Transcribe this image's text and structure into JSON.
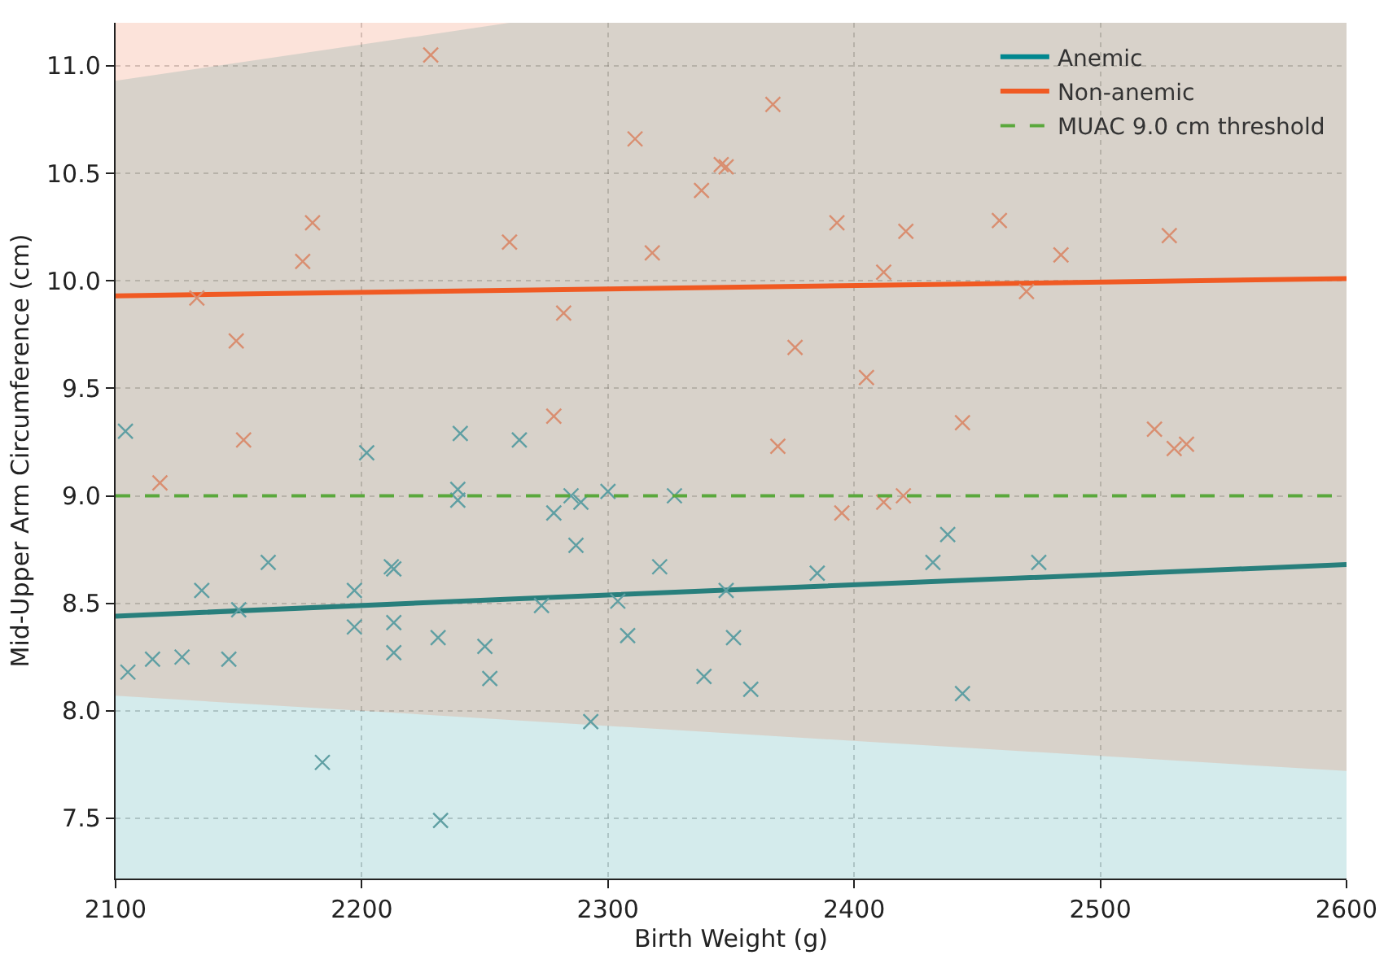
{
  "chart_data": {
    "type": "scatter",
    "xlabel": "Birth Weight (g)",
    "ylabel": "Mid-Upper Arm Circumference (cm)",
    "xlim": [
      2100,
      2600
    ],
    "xticks": [
      2100,
      2200,
      2300,
      2400,
      2500,
      2600
    ],
    "ylim": [
      7.22,
      11.2
    ],
    "yticks": [
      {
        "value": 7.5,
        "label": "7.5"
      },
      {
        "value": 8,
        "label": "8.0"
      },
      {
        "value": 8.5,
        "label": "8.5"
      },
      {
        "value": 9,
        "label": "9.0"
      },
      {
        "value": 9.5,
        "label": "9.5"
      },
      {
        "value": 10,
        "label": "10.0"
      },
      {
        "value": 10.5,
        "label": "10.5"
      },
      {
        "value": 11,
        "label": "11.0"
      }
    ],
    "grid": true,
    "legend": "top right",
    "series": [
      {
        "marker": "cross",
        "color": "#5f9fa3",
        "x": [
          2104,
          2240,
          2264,
          2202,
          2239,
          2239,
          2285,
          2289,
          2278,
          2300,
          2327,
          2287,
          2162,
          2212,
          2213,
          2321,
          2135,
          2197,
          2150,
          2273,
          2304,
          2348,
          2197,
          2213,
          2308,
          2351,
          2231,
          2250,
          2213,
          2115,
          2127,
          2146,
          2105,
          2252,
          2339,
          2293,
          2184,
          2232,
          2358,
          2385,
          2438,
          2432,
          2475,
          2444
        ],
        "values": [
          9.3,
          9.29,
          9.26,
          9.2,
          9.03,
          8.98,
          9.0,
          8.97,
          8.92,
          9.02,
          9.0,
          8.77,
          8.69,
          8.67,
          8.66,
          8.67,
          8.56,
          8.56,
          8.47,
          8.49,
          8.51,
          8.56,
          8.39,
          8.41,
          8.35,
          8.34,
          8.34,
          8.3,
          8.27,
          8.24,
          8.25,
          8.24,
          8.18,
          8.15,
          8.16,
          7.95,
          7.76,
          7.49,
          8.1,
          8.64,
          8.82,
          8.69,
          8.69,
          8.08
        ]
      },
      {
        "marker": "cross",
        "color": "#d98e70",
        "x": [
          2228,
          2311,
          2346,
          2348,
          2338,
          2180,
          2176,
          2260,
          2318,
          2133,
          2282,
          2149,
          2278,
          2152,
          2118,
          2367,
          2393,
          2421,
          2459,
          2528,
          2412,
          2484,
          2470,
          2376,
          2405,
          2444,
          2522,
          2369,
          2530,
          2535,
          2395,
          2412,
          2420
        ],
        "values": [
          11.05,
          10.66,
          10.54,
          10.53,
          10.42,
          10.27,
          10.09,
          10.18,
          10.13,
          9.92,
          9.85,
          9.72,
          9.37,
          9.26,
          9.06,
          10.82,
          10.27,
          10.23,
          10.28,
          10.21,
          10.04,
          10.12,
          9.95,
          9.69,
          9.55,
          9.34,
          9.31,
          9.23,
          9.22,
          9.24,
          8.92,
          8.97,
          9.0
        ]
      },
      {
        "type": "line",
        "name": "Anemic",
        "color": "#00878f",
        "x": [
          2100,
          2260,
          2600
        ],
        "values": [
          8.44,
          8.52,
          8.68
        ],
        "lower": [
          7.22,
          7.22,
          7.22
        ],
        "upper": [
          10.93,
          11.2,
          11.2
        ]
      },
      {
        "type": "line",
        "name": "Non-anemic",
        "color": "#f05a23",
        "x": [
          2100,
          2600
        ],
        "values": [
          9.93,
          10.01
        ],
        "lower": [
          8.07,
          7.72
        ],
        "upper": [
          11.2,
          11.2
        ]
      }
    ],
    "ref_lines": [
      {
        "axis": "y",
        "value": 9.0,
        "label": "MUAC 9.0 cm threshold",
        "color": "#5aa83c",
        "line_style": "dashed"
      }
    ]
  }
}
